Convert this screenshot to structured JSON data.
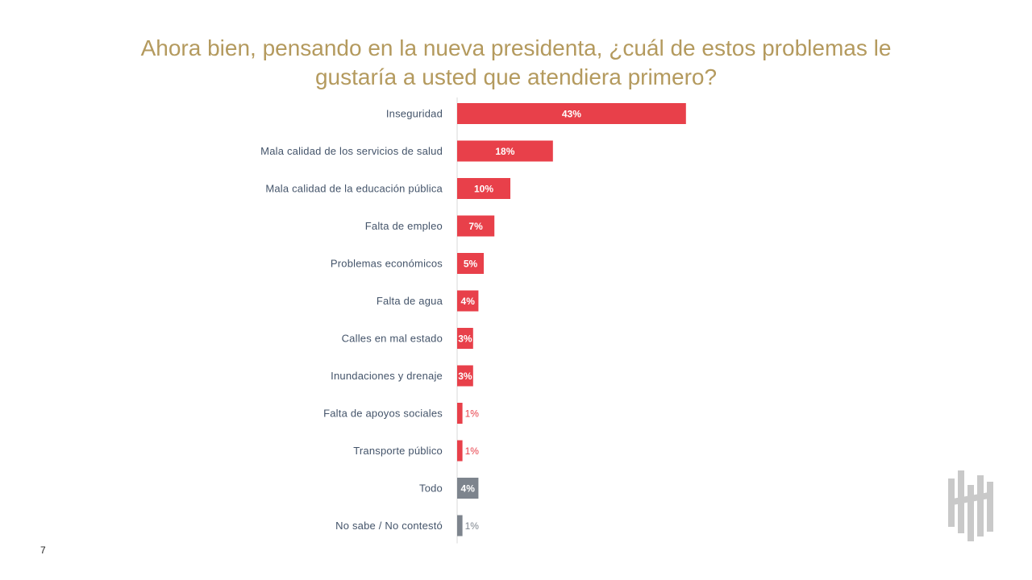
{
  "page": {
    "number": "7"
  },
  "colors": {
    "title": "#b49a5e",
    "red": "#e8404a",
    "gray": "#7d848d",
    "axis": "#d9d9d9",
    "label": "#44546a"
  },
  "logo": {
    "icon": "brand-logo-icon"
  },
  "chart_data": {
    "type": "bar",
    "orientation": "horizontal",
    "title_lines": [
      "Ahora bien, pensando en la nueva presidenta, ¿cuál de estos problemas le",
      "gustaría a usted que atendiera primero?"
    ],
    "categories": [
      "Inseguridad",
      "Mala calidad de los servicios de salud",
      "Mala calidad de la educación pública",
      "Falta de empleo",
      "Problemas económicos",
      "Falta de agua",
      "Calles en mal estado",
      "Inundaciones y drenaje",
      "Falta de apoyos sociales",
      "Transporte público",
      "Todo",
      "No sabe / No contestó"
    ],
    "values": [
      43,
      18,
      10,
      7,
      5,
      4,
      3,
      3,
      1,
      1,
      4,
      1
    ],
    "labels": [
      "43%",
      "18%",
      "10%",
      "7%",
      "5%",
      "4%",
      "3%",
      "3%",
      "1%",
      "1%",
      "4%",
      "1%"
    ],
    "bar_colors": [
      "red",
      "red",
      "red",
      "red",
      "red",
      "red",
      "red",
      "red",
      "red",
      "red",
      "gray",
      "gray"
    ],
    "unit": "%",
    "xlim": [
      0,
      100
    ],
    "legend": "none"
  }
}
